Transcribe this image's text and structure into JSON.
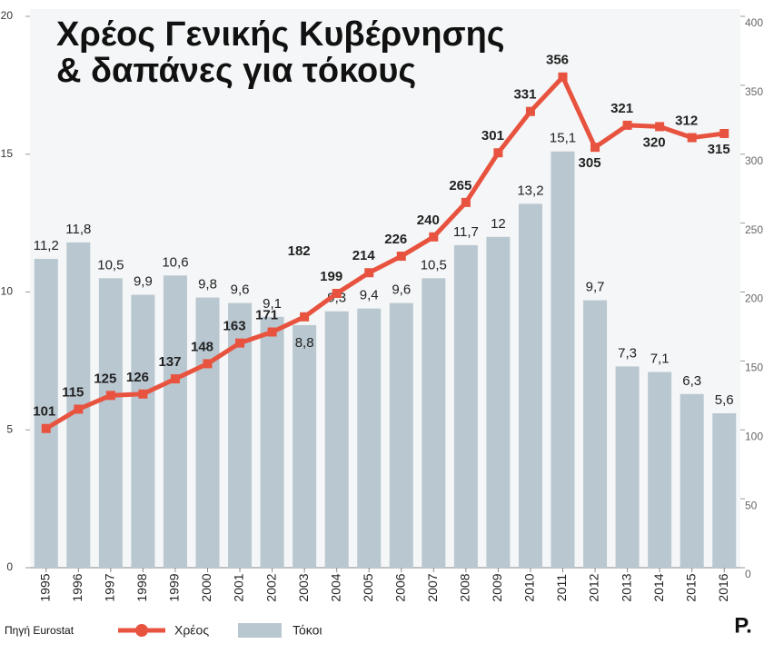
{
  "chart_data": {
    "type": "bar-line",
    "title": [
      "Χρέος Γενικής Κυβέρνησης",
      "& δαπάνες για τόκους"
    ],
    "categories": [
      "1995",
      "1996",
      "1997",
      "1998",
      "1999",
      "2000",
      "2001",
      "2002",
      "2003",
      "2004",
      "2005",
      "2006",
      "2007",
      "2008",
      "2009",
      "2010",
      "2011",
      "2012",
      "2013",
      "2014",
      "2015",
      "2016"
    ],
    "series": [
      {
        "name": "Τόκοι",
        "type": "bar",
        "color": "#b9c7d0",
        "values": [
          11.2,
          11.8,
          10.5,
          9.9,
          10.6,
          9.8,
          9.6,
          9.1,
          8.8,
          9.3,
          9.4,
          9.6,
          10.5,
          11.7,
          12,
          13.2,
          15.1,
          9.7,
          7.3,
          7.1,
          6.3,
          5.6
        ],
        "value_labels": [
          "11,2",
          "11,8",
          "10,5",
          "9,9",
          "10,6",
          "9,8",
          "9,6",
          "9,1",
          "8,8",
          "9,3",
          "9,4",
          "9,6",
          "10,5",
          "11,7",
          "12",
          "13,2",
          "15,1",
          "9,7",
          "7,3",
          "7,1",
          "6,3",
          "5,6"
        ]
      },
      {
        "name": "Χρέος",
        "type": "line",
        "axis": "y2",
        "color": "#e8533f",
        "values": [
          101,
          115,
          125,
          126,
          137,
          148,
          163,
          171,
          182,
          199,
          214,
          226,
          240,
          265,
          301,
          331,
          356,
          305,
          321,
          320,
          312,
          315
        ]
      }
    ],
    "ylim": [
      0,
      20
    ],
    "yticks": [
      0,
      5,
      10,
      15,
      20
    ],
    "y2lim": [
      0,
      400
    ],
    "y2ticks": [
      0,
      50,
      100,
      150,
      200,
      250,
      300,
      350,
      400
    ],
    "source": "Πηγή Eurostat",
    "logo": "P."
  }
}
